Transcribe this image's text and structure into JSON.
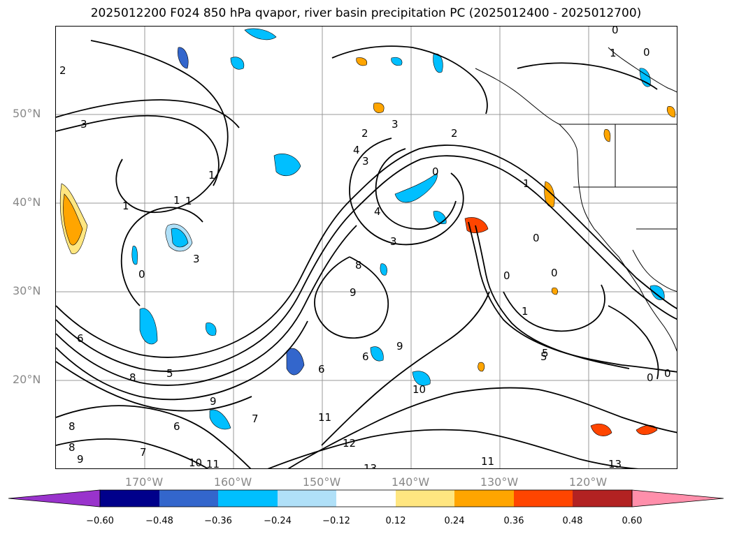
{
  "title": "2025012200 F024 850 hPa qvapor, river basin precipitation PC (2025012400 - 2025012700)",
  "map": {
    "lat_ticks": [
      "50°N",
      "40°N",
      "30°N",
      "20°N"
    ],
    "lon_ticks": [
      "170°W",
      "160°W",
      "150°W",
      "140°W",
      "130°W",
      "120°W"
    ],
    "contour_labels": [
      "2",
      "3",
      "3",
      "2",
      "4",
      "3",
      "2",
      "0",
      "1",
      "1",
      "1",
      "4",
      "3",
      "1",
      "0",
      "3",
      "8",
      "9",
      "6",
      "9",
      "6",
      "5",
      "6",
      "10",
      "8",
      "5",
      "9",
      "7",
      "6",
      "11",
      "12",
      "13",
      "10",
      "11",
      "7",
      "8",
      "8",
      "9",
      "0",
      "0",
      "0",
      "1",
      "5",
      "0",
      "0",
      "13",
      "11",
      "1",
      "1",
      "0",
      "0"
    ]
  },
  "colorbar": {
    "ticks": [
      "−0.60",
      "−0.48",
      "−0.36",
      "−0.24",
      "−0.12",
      "0.12",
      "0.24",
      "0.36",
      "0.48",
      "0.60"
    ],
    "colors": [
      "#9933cc",
      "#00008b",
      "#3366cc",
      "#00bfff",
      "#b0e0f8",
      "#ffffff",
      "#ffe680",
      "#ffa500",
      "#ff4500",
      "#b22222",
      "#ff8fab"
    ]
  }
}
